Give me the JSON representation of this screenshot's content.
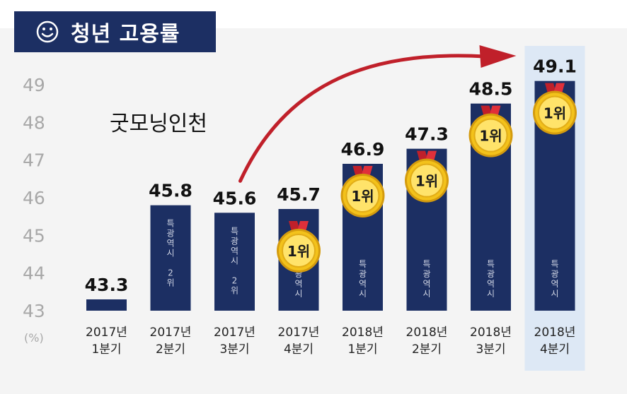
{
  "title": "청년 고용률",
  "annotation": "굿모닝인천",
  "colors": {
    "bar": "#1c2f63",
    "title_bg": "#1c2f63",
    "highlight": "#dde8f5",
    "arrow": "#c0202a",
    "medal": "#f3c21b"
  },
  "chart_data": {
    "type": "bar",
    "title": "청년 고용률",
    "ylabel": "(%)",
    "ylim": [
      43,
      49.5
    ],
    "yticks": [
      "49",
      "48",
      "47",
      "46",
      "45",
      "44",
      "43"
    ],
    "categories": [
      [
        "2017년",
        "1분기"
      ],
      [
        "2017년",
        "2분기"
      ],
      [
        "2017년",
        "3분기"
      ],
      [
        "2017년",
        "4분기"
      ],
      [
        "2018년",
        "1분기"
      ],
      [
        "2018년",
        "2분기"
      ],
      [
        "2018년",
        "3분기"
      ],
      [
        "2018년",
        "4분기"
      ]
    ],
    "values": [
      43.3,
      45.8,
      45.6,
      45.7,
      46.9,
      47.3,
      48.5,
      49.1
    ],
    "value_labels": [
      "43.3",
      "45.8",
      "45.6",
      "45.7",
      "46.9",
      "47.3",
      "48.5",
      "49.1"
    ],
    "bar_notes": [
      "",
      "특광역시 2위",
      "특광역시 2위",
      "특광역시",
      "특광역시",
      "특광역시",
      "특광역시",
      "특광역시"
    ],
    "medals": [
      "",
      "",
      "",
      "1위",
      "1위",
      "1위",
      "1위",
      "1위"
    ],
    "highlight_index": 7,
    "grid": false
  }
}
